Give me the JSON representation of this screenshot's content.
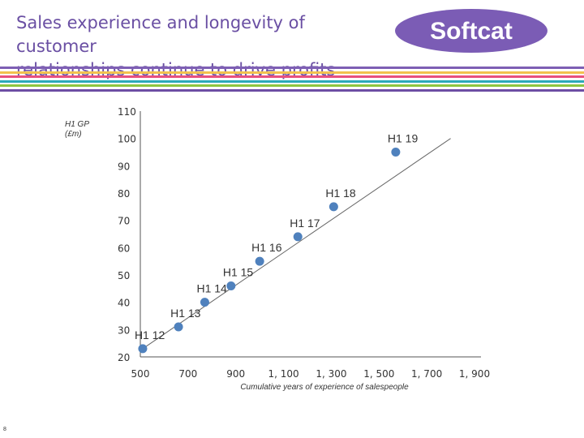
{
  "header": {
    "title_line1": "Sales experience and longevity of customer",
    "title_line2": "relationships continue to drive profits",
    "logo_text": "Softcat"
  },
  "colors": {
    "title": "#6a4fa3",
    "logo_bg": "#7b5cb5",
    "point": "#4f81bd",
    "stripes": [
      "#7e5fb4",
      "#f2c14e",
      "#e8507f",
      "#2aa9b8",
      "#8dc63f",
      "#6d4ea4"
    ]
  },
  "page_number": "8",
  "chart_data": {
    "type": "scatter",
    "ylabel_line1": "H1 GP",
    "ylabel_line2": "(£m)",
    "xlabel": "Cumulative years of experience of salespeople",
    "xlim": [
      500,
      1900
    ],
    "ylim": [
      20,
      110
    ],
    "xticks": [
      "500",
      "700",
      "900",
      "1, 100",
      "1, 300",
      "1, 500",
      "1, 700",
      "1, 900"
    ],
    "yticks": [
      "20",
      "30",
      "40",
      "50",
      "60",
      "70",
      "80",
      "90",
      "100",
      "110"
    ],
    "trendline": true,
    "points": [
      {
        "label": "H1 12",
        "x": 510,
        "y": 23
      },
      {
        "label": "H1 13",
        "x": 660,
        "y": 31
      },
      {
        "label": "H1 14",
        "x": 770,
        "y": 40
      },
      {
        "label": "H1 15",
        "x": 880,
        "y": 46
      },
      {
        "label": "H1 16",
        "x": 1000,
        "y": 55
      },
      {
        "label": "H1 17",
        "x": 1160,
        "y": 64
      },
      {
        "label": "H1 18",
        "x": 1310,
        "y": 75
      },
      {
        "label": "H1 19",
        "x": 1570,
        "y": 95
      }
    ],
    "trend": [
      [
        510,
        23
      ],
      [
        1800,
        100
      ]
    ]
  }
}
